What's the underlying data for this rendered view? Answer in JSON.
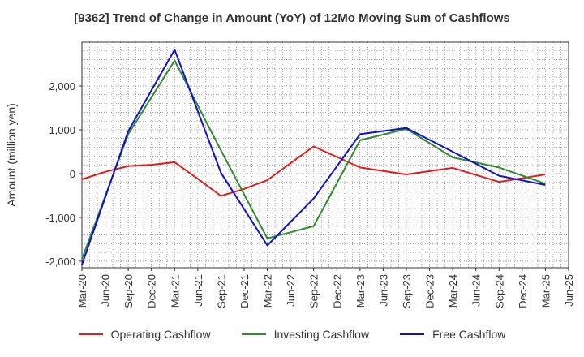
{
  "chart_data": {
    "type": "line",
    "title": "[9362]  Trend of Change in Amount (YoY) of 12Mo Moving Sum of Cashflows",
    "xlabel": "",
    "ylabel": "Amount (million yen)",
    "categories": [
      "Mar-20",
      "Jun-20",
      "Sep-20",
      "Dec-20",
      "Mar-21",
      "Jun-21",
      "Sep-21",
      "Dec-21",
      "Mar-22",
      "Jun-22",
      "Sep-22",
      "Dec-22",
      "Mar-23",
      "Jun-23",
      "Sep-23",
      "Dec-23",
      "Mar-24",
      "Jun-24",
      "Sep-24",
      "Dec-24",
      "Mar-25",
      "Jun-25"
    ],
    "ylim": [
      -2150,
      3000
    ],
    "yticks": [
      -2000,
      -1000,
      0,
      1000,
      2000
    ],
    "ytick_labels": [
      "-2,000",
      "-1,000",
      "0",
      "1,000",
      "2,000"
    ],
    "grid": true,
    "legend_position": "bottom",
    "series": [
      {
        "name": "Operating Cashflow",
        "color": "#e41a1c",
        "values": [
          -130,
          40,
          170,
          200,
          260,
          -120,
          -510,
          -350,
          -150,
          null,
          620,
          null,
          140,
          null,
          -20,
          null,
          130,
          null,
          -190,
          null,
          -20,
          null
        ]
      },
      {
        "name": "Investing Cashflow",
        "color": "#2e8b2e",
        "values": [
          -1950,
          null,
          900,
          null,
          2580,
          null,
          530,
          null,
          -1480,
          null,
          -1200,
          null,
          760,
          null,
          1020,
          null,
          370,
          null,
          140,
          null,
          -230,
          null
        ]
      },
      {
        "name": "Free Cashflow",
        "color": "#1010cc",
        "values": [
          -2080,
          null,
          970,
          null,
          2830,
          null,
          20,
          null,
          -1640,
          null,
          -570,
          null,
          900,
          null,
          1040,
          null,
          500,
          null,
          -50,
          null,
          -260,
          null
        ]
      }
    ]
  }
}
